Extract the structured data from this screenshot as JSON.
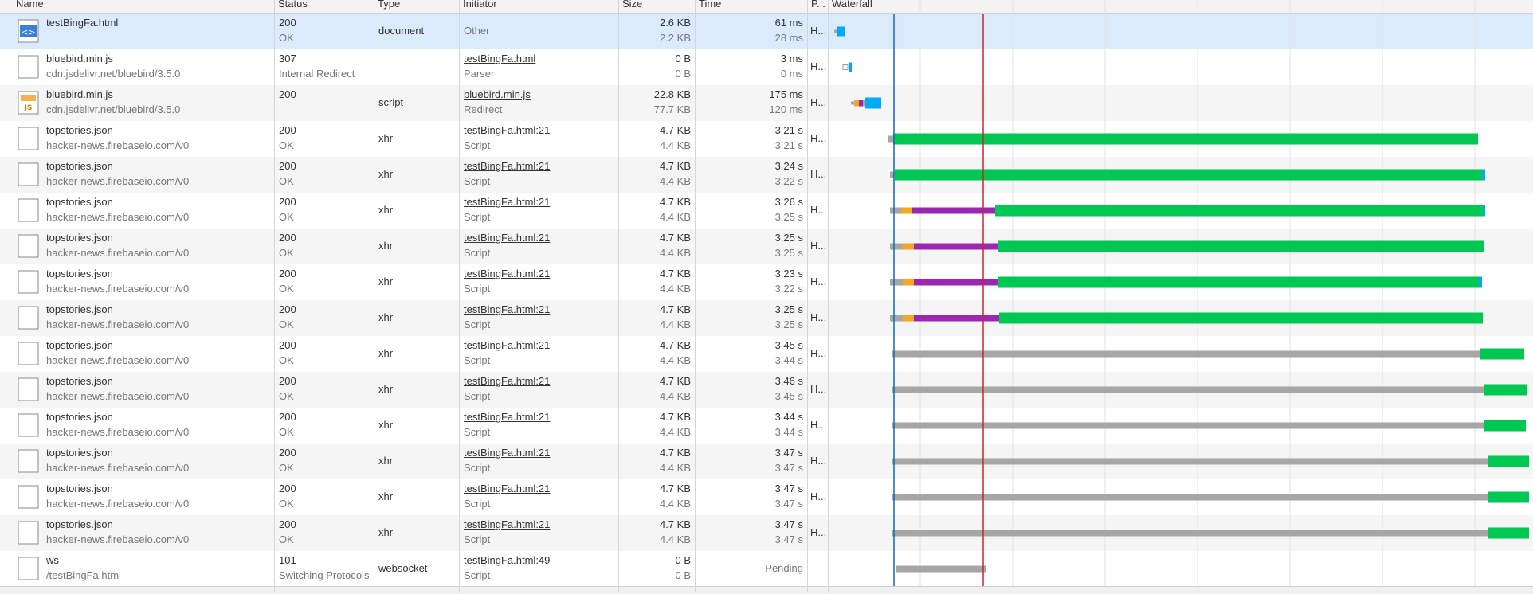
{
  "columns": [
    "Name",
    "Status",
    "Type",
    "Initiator",
    "Size",
    "Time",
    "P...",
    "Waterfall"
  ],
  "colors": {
    "stalled": "#a6a6a6",
    "queued": "#f5a623",
    "ssl": "#9c27b0",
    "waiting": "#00c853",
    "download": "#03a9f4",
    "dom_content_loaded": "#1565c0",
    "load": "#c62828",
    "selected_row": "#dcebfb"
  },
  "rows": [
    {
      "icon": "html-document-icon",
      "name": "testBingFa.html",
      "path": "",
      "status": "200",
      "status_text": "OK",
      "type": "document",
      "initiator": "Other",
      "initiator_link": false,
      "initiator_sub": "",
      "size": "2.6 KB",
      "size2": "2.2 KB",
      "time": "61 ms",
      "time2": "28 ms",
      "protocol": "H...",
      "selected": true
    },
    {
      "icon": "blank-file-icon",
      "name": "bluebird.min.js",
      "path": "cdn.jsdelivr.net/bluebird/3.5.0",
      "status": "307",
      "status_text": "Internal Redirect",
      "type": "",
      "initiator": "testBingFa.html",
      "initiator_link": true,
      "initiator_sub": "Parser",
      "size": "0 B",
      "size2": "0 B",
      "time": "3 ms",
      "time2": "0 ms",
      "protocol": "H..."
    },
    {
      "icon": "js-file-icon",
      "name": "bluebird.min.js",
      "path": "cdn.jsdelivr.net/bluebird/3.5.0",
      "status": "200",
      "status_text": "",
      "type": "script",
      "initiator": "bluebird.min.js",
      "initiator_link": true,
      "initiator_sub": "Redirect",
      "size": "22.8 KB",
      "size2": "77.7 KB",
      "time": "175 ms",
      "time2": "120 ms",
      "protocol": "H..."
    },
    {
      "icon": "blank-file-icon",
      "name": "topstories.json",
      "path": "hacker-news.firebaseio.com/v0",
      "status": "200",
      "status_text": "OK",
      "type": "xhr",
      "initiator": "testBingFa.html:21",
      "initiator_link": true,
      "initiator_sub": "Script",
      "size": "4.7 KB",
      "size2": "4.4 KB",
      "time": "3.21 s",
      "time2": "3.21 s",
      "protocol": "H..."
    },
    {
      "icon": "blank-file-icon",
      "name": "topstories.json",
      "path": "hacker-news.firebaseio.com/v0",
      "status": "200",
      "status_text": "OK",
      "type": "xhr",
      "initiator": "testBingFa.html:21",
      "initiator_link": true,
      "initiator_sub": "Script",
      "size": "4.7 KB",
      "size2": "4.4 KB",
      "time": "3.24 s",
      "time2": "3.22 s",
      "protocol": "H..."
    },
    {
      "icon": "blank-file-icon",
      "name": "topstories.json",
      "path": "hacker-news.firebaseio.com/v0",
      "status": "200",
      "status_text": "OK",
      "type": "xhr",
      "initiator": "testBingFa.html:21",
      "initiator_link": true,
      "initiator_sub": "Script",
      "size": "4.7 KB",
      "size2": "4.4 KB",
      "time": "3.26 s",
      "time2": "3.25 s",
      "protocol": "H..."
    },
    {
      "icon": "blank-file-icon",
      "name": "topstories.json",
      "path": "hacker-news.firebaseio.com/v0",
      "status": "200",
      "status_text": "OK",
      "type": "xhr",
      "initiator": "testBingFa.html:21",
      "initiator_link": true,
      "initiator_sub": "Script",
      "size": "4.7 KB",
      "size2": "4.4 KB",
      "time": "3.25 s",
      "time2": "3.25 s",
      "protocol": "H..."
    },
    {
      "icon": "blank-file-icon",
      "name": "topstories.json",
      "path": "hacker-news.firebaseio.com/v0",
      "status": "200",
      "status_text": "OK",
      "type": "xhr",
      "initiator": "testBingFa.html:21",
      "initiator_link": true,
      "initiator_sub": "Script",
      "size": "4.7 KB",
      "size2": "4.4 KB",
      "time": "3.23 s",
      "time2": "3.22 s",
      "protocol": "H..."
    },
    {
      "icon": "blank-file-icon",
      "name": "topstories.json",
      "path": "hacker-news.firebaseio.com/v0",
      "status": "200",
      "status_text": "OK",
      "type": "xhr",
      "initiator": "testBingFa.html:21",
      "initiator_link": true,
      "initiator_sub": "Script",
      "size": "4.7 KB",
      "size2": "4.4 KB",
      "time": "3.25 s",
      "time2": "3.25 s",
      "protocol": "H..."
    },
    {
      "icon": "blank-file-icon",
      "name": "topstories.json",
      "path": "hacker-news.firebaseio.com/v0",
      "status": "200",
      "status_text": "OK",
      "type": "xhr",
      "initiator": "testBingFa.html:21",
      "initiator_link": true,
      "initiator_sub": "Script",
      "size": "4.7 KB",
      "size2": "4.4 KB",
      "time": "3.45 s",
      "time2": "3.44 s",
      "protocol": "H..."
    },
    {
      "icon": "blank-file-icon",
      "name": "topstories.json",
      "path": "hacker-news.firebaseio.com/v0",
      "status": "200",
      "status_text": "OK",
      "type": "xhr",
      "initiator": "testBingFa.html:21",
      "initiator_link": true,
      "initiator_sub": "Script",
      "size": "4.7 KB",
      "size2": "4.4 KB",
      "time": "3.46 s",
      "time2": "3.45 s",
      "protocol": "H..."
    },
    {
      "icon": "blank-file-icon",
      "name": "topstories.json",
      "path": "hacker-news.firebaseio.com/v0",
      "status": "200",
      "status_text": "OK",
      "type": "xhr",
      "initiator": "testBingFa.html:21",
      "initiator_link": true,
      "initiator_sub": "Script",
      "size": "4.7 KB",
      "size2": "4.4 KB",
      "time": "3.44 s",
      "time2": "3.44 s",
      "protocol": "H..."
    },
    {
      "icon": "blank-file-icon",
      "name": "topstories.json",
      "path": "hacker-news.firebaseio.com/v0",
      "status": "200",
      "status_text": "OK",
      "type": "xhr",
      "initiator": "testBingFa.html:21",
      "initiator_link": true,
      "initiator_sub": "Script",
      "size": "4.7 KB",
      "size2": "4.4 KB",
      "time": "3.47 s",
      "time2": "3.47 s",
      "protocol": "H..."
    },
    {
      "icon": "blank-file-icon",
      "name": "topstories.json",
      "path": "hacker-news.firebaseio.com/v0",
      "status": "200",
      "status_text": "OK",
      "type": "xhr",
      "initiator": "testBingFa.html:21",
      "initiator_link": true,
      "initiator_sub": "Script",
      "size": "4.7 KB",
      "size2": "4.4 KB",
      "time": "3.47 s",
      "time2": "3.47 s",
      "protocol": "H..."
    },
    {
      "icon": "blank-file-icon",
      "name": "topstories.json",
      "path": "hacker-news.firebaseio.com/v0",
      "status": "200",
      "status_text": "OK",
      "type": "xhr",
      "initiator": "testBingFa.html:21",
      "initiator_link": true,
      "initiator_sub": "Script",
      "size": "4.7 KB",
      "size2": "4.4 KB",
      "time": "3.47 s",
      "time2": "3.47 s",
      "protocol": "H..."
    },
    {
      "icon": "blank-file-icon",
      "name": "ws",
      "path": "/testBingFa.html",
      "status": "101",
      "status_text": "Switching Protocols",
      "type": "websocket",
      "initiator": "testBingFa.html:49",
      "initiator_link": true,
      "initiator_sub": "Script",
      "size": "0 B",
      "size2": "0 B",
      "time": "Pending",
      "time2": "",
      "protocol": "",
      "pending": true
    }
  ]
}
